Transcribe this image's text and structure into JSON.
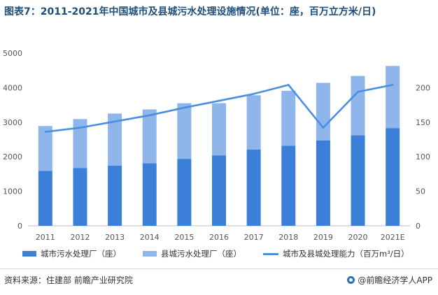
{
  "title": "图表7：2011-2021年中国城市及县城污水处理设施情况(单位：座，百万立方米/日)",
  "source": "资料来源：住建部 前瞻产业研究院",
  "brand": "@前瞻经济学人APP",
  "brand_icon": "qianzhan-logo-icon",
  "colors": {
    "city_bar": "#3b7fd9",
    "county_bar": "#8fb6ea",
    "line": "#4a8fe0",
    "axis_text": "#555555",
    "grid": "#e6e6e6"
  },
  "chart_data": {
    "type": "bar",
    "stacked": true,
    "categories": [
      "2011",
      "2012",
      "2013",
      "2014",
      "2015",
      "2016",
      "2017",
      "2018",
      "2019",
      "2020",
      "2021E"
    ],
    "series": [
      {
        "name": "城市污水处理厂（座）",
        "type": "bar",
        "axis": "left",
        "values": [
          1590,
          1670,
          1740,
          1810,
          1940,
          2040,
          2210,
          2320,
          2470,
          2620,
          2830
        ]
      },
      {
        "name": "县城污水处理厂（座）",
        "type": "bar",
        "axis": "left",
        "values": [
          1300,
          1420,
          1510,
          1560,
          1610,
          1510,
          1570,
          1590,
          1670,
          1720,
          1800
        ]
      },
      {
        "name": "城市及县城处理能力（百万m³/日）",
        "type": "line",
        "axis": "right",
        "values": [
          136,
          142,
          151,
          160,
          171,
          181,
          191,
          204,
          142,
          194,
          204
        ]
      }
    ],
    "y_left": {
      "min": 0,
      "max": 5000,
      "ticks": [
        "0",
        "1000",
        "2000",
        "3000",
        "4000",
        "5000"
      ]
    },
    "y_right": {
      "min": 0,
      "max": 250,
      "ticks": [
        "0",
        "50",
        "100",
        "150",
        "200"
      ]
    },
    "legend_position": "bottom",
    "grid": false
  }
}
